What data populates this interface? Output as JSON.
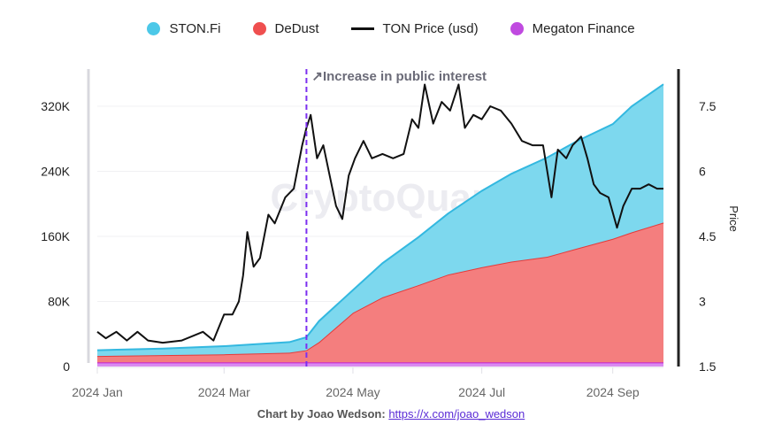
{
  "chart_data": {
    "type": "area",
    "stacked": true,
    "legend": [
      {
        "name": "STON.Fi",
        "color": "#4cc8e8",
        "marker": "dot"
      },
      {
        "name": "DeDust",
        "color": "#ef4f4f",
        "marker": "dot"
      },
      {
        "name": "TON Price (usd)",
        "color": "#111111",
        "marker": "line"
      },
      {
        "name": "Megaton Finance",
        "color": "#c04ae0",
        "marker": "dot"
      }
    ],
    "legend_position": "top",
    "x": [
      "2024-01-01",
      "2024-02-01",
      "2024-03-01",
      "2024-04-01",
      "2024-04-09",
      "2024-04-15",
      "2024-05-01",
      "2024-05-15",
      "2024-06-01",
      "2024-06-15",
      "2024-07-01",
      "2024-07-15",
      "2024-08-01",
      "2024-08-15",
      "2024-09-01",
      "2024-09-10",
      "2024-09-25"
    ],
    "series": [
      {
        "name": "Megaton Finance",
        "values": [
          5,
          5,
          5,
          5,
          5,
          5,
          5,
          5,
          5,
          5,
          5,
          5,
          5,
          5,
          5,
          5,
          5
        ]
      },
      {
        "name": "DeDust",
        "values": [
          8,
          9,
          10,
          12,
          15,
          25,
          61,
          80,
          95,
          108,
          117,
          124,
          130,
          140,
          152,
          160,
          172
        ]
      },
      {
        "name": "STON.Fi",
        "values": [
          7,
          8,
          10,
          13,
          16,
          26,
          28,
          42,
          59,
          75,
          94,
          108,
          122,
          132,
          141,
          155,
          170
        ]
      }
    ],
    "price_series": {
      "name": "TON Price (usd)",
      "x": [
        "2024-01-01",
        "2024-01-05",
        "2024-01-10",
        "2024-01-15",
        "2024-01-20",
        "2024-01-25",
        "2024-02-01",
        "2024-02-10",
        "2024-02-20",
        "2024-02-25",
        "2024-03-01",
        "2024-03-05",
        "2024-03-08",
        "2024-03-10",
        "2024-03-12",
        "2024-03-15",
        "2024-03-18",
        "2024-03-22",
        "2024-03-25",
        "2024-03-30",
        "2024-04-03",
        "2024-04-07",
        "2024-04-09",
        "2024-04-11",
        "2024-04-14",
        "2024-04-17",
        "2024-04-20",
        "2024-04-23",
        "2024-04-26",
        "2024-04-29",
        "2024-05-02",
        "2024-05-06",
        "2024-05-10",
        "2024-05-15",
        "2024-05-20",
        "2024-05-25",
        "2024-05-29",
        "2024-06-01",
        "2024-06-04",
        "2024-06-08",
        "2024-06-12",
        "2024-06-16",
        "2024-06-20",
        "2024-06-23",
        "2024-06-27",
        "2024-07-01",
        "2024-07-05",
        "2024-07-10",
        "2024-07-15",
        "2024-07-20",
        "2024-07-25",
        "2024-07-30",
        "2024-08-03",
        "2024-08-06",
        "2024-08-10",
        "2024-08-13",
        "2024-08-17",
        "2024-08-20",
        "2024-08-23",
        "2024-08-26",
        "2024-08-30",
        "2024-09-03",
        "2024-09-06",
        "2024-09-10",
        "2024-09-14",
        "2024-09-18",
        "2024-09-22",
        "2024-09-25"
      ],
      "values": [
        2.3,
        2.15,
        2.3,
        2.1,
        2.3,
        2.1,
        2.05,
        2.1,
        2.3,
        2.1,
        2.7,
        2.7,
        3.0,
        3.6,
        4.6,
        3.8,
        4.0,
        5.0,
        4.8,
        5.4,
        5.6,
        6.6,
        7.0,
        7.3,
        6.3,
        6.6,
        5.9,
        5.2,
        4.9,
        5.9,
        6.3,
        6.7,
        6.3,
        6.4,
        6.3,
        6.4,
        7.2,
        7.0,
        8.0,
        7.1,
        7.6,
        7.4,
        8.0,
        7.0,
        7.3,
        7.2,
        7.5,
        7.4,
        7.1,
        6.7,
        6.6,
        6.6,
        5.4,
        6.5,
        6.3,
        6.6,
        6.8,
        6.3,
        5.7,
        5.5,
        5.4,
        4.7,
        5.2,
        5.6,
        5.6,
        5.7,
        5.6,
        5.6
      ]
    },
    "y_left": {
      "ticks": [
        "0",
        "80K",
        "160K",
        "240K",
        "320K"
      ],
      "range": [
        0,
        360
      ],
      "unit": "K"
    },
    "y_right": {
      "label": "Price",
      "ticks": [
        "1.5",
        "3",
        "4.5",
        "6",
        "7.5"
      ],
      "range": [
        1.5,
        8.3
      ]
    },
    "x_ticks": [
      "2024 Jan",
      "2024 Mar",
      "2024 May",
      "2024 Jul",
      "2024 Sep"
    ],
    "x_tick_dates": [
      "2024-01-01",
      "2024-03-01",
      "2024-05-01",
      "2024-07-01",
      "2024-09-01"
    ],
    "x_range": [
      "2024-01-01",
      "2024-09-25"
    ],
    "grid": true,
    "annotation": {
      "date": "2024-04-09",
      "label": "↗Increase in public interest",
      "color": "#7b2ff0"
    },
    "watermark": "CryptoQuant"
  },
  "footer": {
    "prefix": "Chart by Joao Wedson:",
    "link": "https://x.com/joao_wedson"
  }
}
